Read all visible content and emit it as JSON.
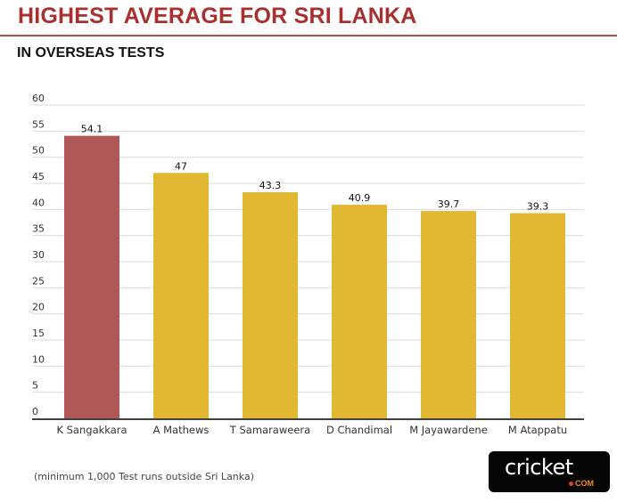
{
  "header": {
    "title": "HIGHEST AVERAGE FOR SRI LANKA",
    "subtitle": "IN OVERSEAS TESTS"
  },
  "footnote": "(minimum 1,000 Test runs outside Sri Lanka)",
  "logo": {
    "word": "cricket",
    "suffix": "COM"
  },
  "colors": {
    "title": "#a8302f",
    "highlight_bar": "#b05858",
    "bar": "#e2b832",
    "grid": "#dcdcdc",
    "axis": "#404040"
  },
  "chart_data": {
    "type": "bar",
    "title": "HIGHEST AVERAGE FOR SRI LANKA",
    "subtitle": "IN OVERSEAS TESTS",
    "xlabel": "",
    "ylabel": "",
    "categories": [
      "K Sangakkara",
      "A Mathews",
      "T Samaraweera",
      "D Chandimal",
      "M Jayawardene",
      "M Atappatu"
    ],
    "values": [
      54.1,
      47,
      43.3,
      40.9,
      39.7,
      39.3
    ],
    "data_labels": [
      "54.1",
      "47",
      "43.3",
      "40.9",
      "39.7",
      "39.3"
    ],
    "highlight_index": 0,
    "ylim": [
      0,
      60
    ],
    "yticks": [
      0,
      5,
      10,
      15,
      20,
      25,
      30,
      35,
      40,
      45,
      50,
      55,
      60
    ],
    "grid": true,
    "legend": "none"
  }
}
